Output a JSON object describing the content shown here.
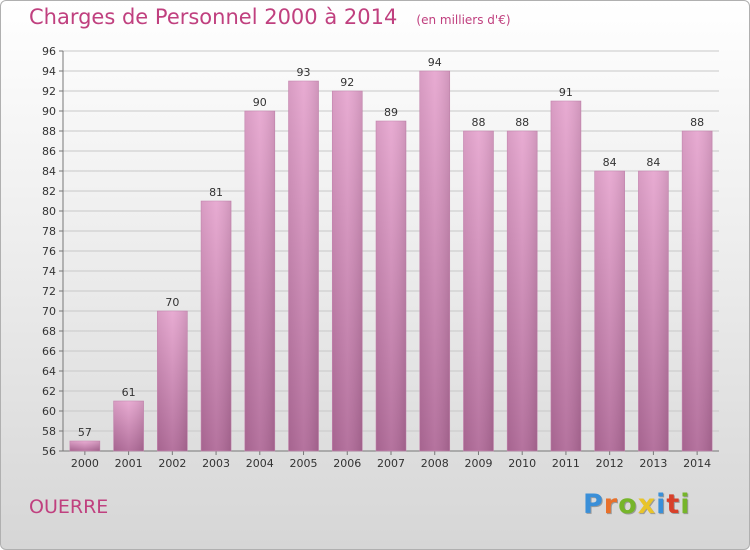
{
  "chart_data": {
    "type": "bar",
    "title": "Charges de Personnel 2000 à 2014",
    "unit_label": "(en milliers d'€)",
    "categories": [
      "2000",
      "2001",
      "2002",
      "2003",
      "2004",
      "2005",
      "2006",
      "2007",
      "2008",
      "2009",
      "2010",
      "2011",
      "2012",
      "2013",
      "2014"
    ],
    "values": [
      57,
      61,
      70,
      81,
      90,
      93,
      92,
      89,
      94,
      88,
      88,
      91,
      84,
      84,
      88
    ],
    "ylim": [
      56,
      96
    ],
    "yticks": [
      56,
      58,
      60,
      62,
      64,
      66,
      68,
      70,
      72,
      74,
      76,
      78,
      80,
      82,
      84,
      86,
      88,
      90,
      92,
      94,
      96
    ],
    "grid": true,
    "bar_color": "#d98cbc"
  },
  "commune": "OUERRE",
  "logo": {
    "letters": [
      "P",
      "r",
      "o",
      "x",
      "i",
      "t",
      "i"
    ],
    "colors": [
      "#3a8fd8",
      "#e8702a",
      "#76b52a",
      "#e8c42a",
      "#3a8fd8",
      "#d8402a",
      "#76b52a"
    ]
  }
}
